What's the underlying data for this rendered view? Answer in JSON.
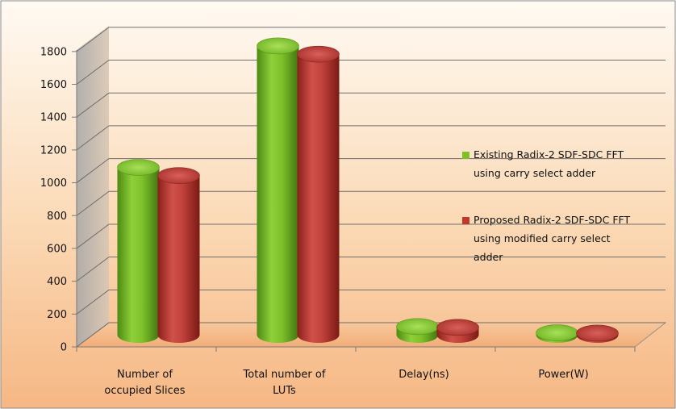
{
  "chart_data": {
    "type": "bar",
    "title": "",
    "xlabel": "",
    "ylabel": "",
    "ylim": [
      0,
      1800
    ],
    "ytick_step": 200,
    "grid": true,
    "legend_position": "right",
    "categories": [
      [
        "Number of",
        "occupied Slices"
      ],
      [
        "Total number of",
        "LUTs"
      ],
      [
        "Delay(ns)"
      ],
      [
        "Power(W)"
      ]
    ],
    "series": [
      {
        "name": [
          "Existing Radix-2 SDF-SDC FFT",
          "using carry select adder"
        ],
        "color": "#7fbf2a",
        "values": [
          1020,
          1760,
          50,
          12
        ]
      },
      {
        "name": [
          "Proposed Radix-2 SDF-SDC FFT",
          "using modified carry select",
          "adder"
        ],
        "color": "#c0392b",
        "values": [
          970,
          1710,
          45,
          10
        ]
      }
    ]
  }
}
